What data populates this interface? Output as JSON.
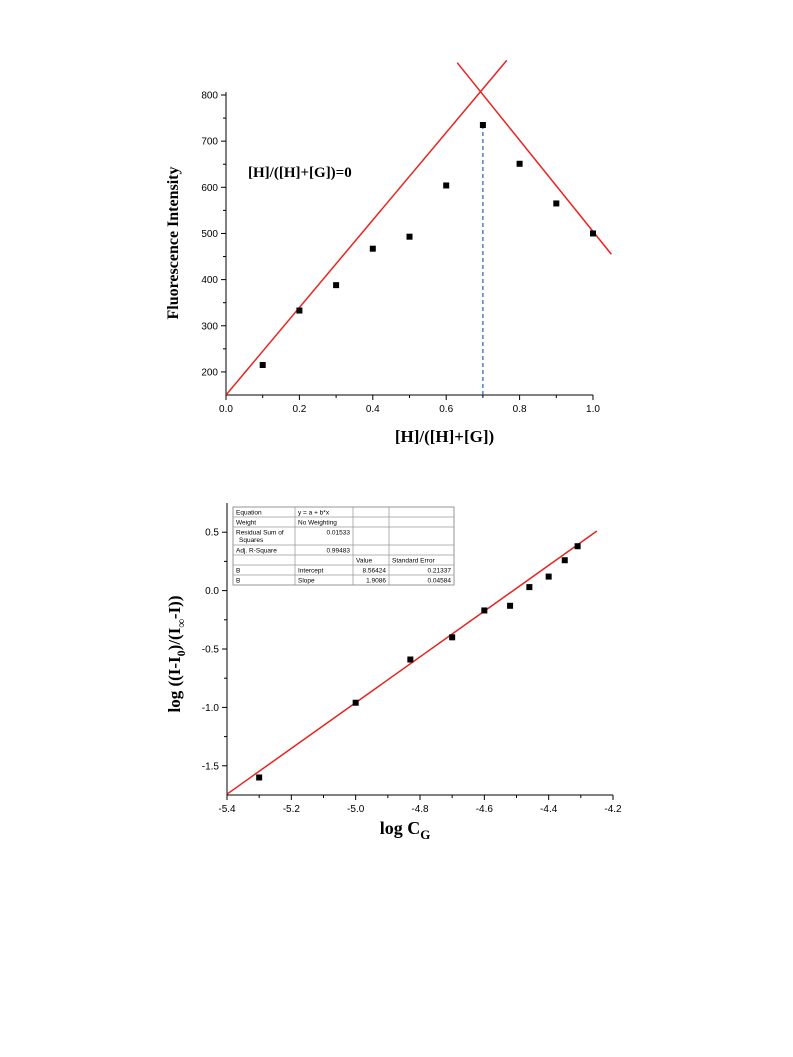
{
  "chart_data": [
    {
      "type": "scatter",
      "xlabel": "[H]/([H]+[G])",
      "ylabel": "Fluorescence Intensity",
      "annotation": "[H]/([H]+[G])=0",
      "xlim": [
        0.0,
        1.0
      ],
      "ylim": [
        150,
        800
      ],
      "xticks": [
        "0.0",
        "0.2",
        "0.4",
        "0.6",
        "0.8",
        "1.0"
      ],
      "yticks": [
        "200",
        "300",
        "400",
        "500",
        "600",
        "700",
        "800"
      ],
      "xtick_values": [
        0.0,
        0.2,
        0.4,
        0.6,
        0.8,
        1.0
      ],
      "ytick_values": [
        200,
        300,
        400,
        500,
        600,
        700,
        800
      ],
      "series": [
        {
          "x": [
            0.1,
            0.2,
            0.3,
            0.4,
            0.5,
            0.6,
            0.7,
            0.8,
            0.9,
            1.0
          ],
          "y": [
            215,
            333,
            388,
            467,
            493,
            604,
            735,
            651,
            565,
            500
          ]
        }
      ],
      "fit_lines": [
        {
          "x": [
            0.0,
            0.765
          ],
          "y": [
            150,
            875
          ],
          "color": "#e8231f"
        },
        {
          "x": [
            0.63,
            1.05
          ],
          "y": [
            870,
            455
          ],
          "color": "#e8231f"
        }
      ],
      "vline": {
        "x": 0.7,
        "color": "#2a5db0"
      }
    },
    {
      "type": "scatter",
      "xlabel_main": "log C",
      "xlabel_sub": "G",
      "ylabel_parts": [
        "log ((I-I",
        "0",
        ")/(I",
        "∞",
        "-I))"
      ],
      "xlim": [
        -5.4,
        -4.2
      ],
      "ylim": [
        -1.75,
        0.75
      ],
      "xticks": [
        "-5.4",
        "-5.2",
        "-5.0",
        "-4.8",
        "-4.6",
        "-4.4",
        "-4.2"
      ],
      "yticks": [
        "-1.5",
        "-1.0",
        "-0.5",
        "0.0",
        "0.5"
      ],
      "xtick_values": [
        -5.4,
        -5.2,
        -5.0,
        -4.8,
        -4.6,
        -4.4,
        -4.2
      ],
      "ytick_values": [
        -1.5,
        -1.0,
        -0.5,
        0.0,
        0.5
      ],
      "series": [
        {
          "x": [
            -5.3,
            -5.0,
            -4.83,
            -4.7,
            -4.6,
            -4.52,
            -4.46,
            -4.4,
            -4.35,
            -4.31
          ],
          "y": [
            -1.6,
            -0.96,
            -0.59,
            -0.4,
            -0.17,
            -0.13,
            0.03,
            0.12,
            0.26,
            0.38
          ]
        }
      ],
      "fit_lines": [
        {
          "x": [
            -5.4,
            -4.25
          ],
          "y": [
            -1.743,
            0.51
          ],
          "color": "#e8231f"
        }
      ],
      "table": [
        [
          "Equation",
          "y = a + b*x",
          "",
          ""
        ],
        [
          "Weight",
          "No Weighting",
          "",
          ""
        ],
        [
          "Residual Sum of\nSquares",
          "0.01533",
          "",
          ""
        ],
        [
          "Adj. R-Square",
          "0.99483",
          "",
          ""
        ],
        [
          "",
          "",
          "Value",
          "Standard Error"
        ],
        [
          "B",
          "Intercept",
          "8.56424",
          "0.21337"
        ],
        [
          "B",
          "Slope",
          "1.9086",
          "0.04584"
        ]
      ]
    }
  ]
}
